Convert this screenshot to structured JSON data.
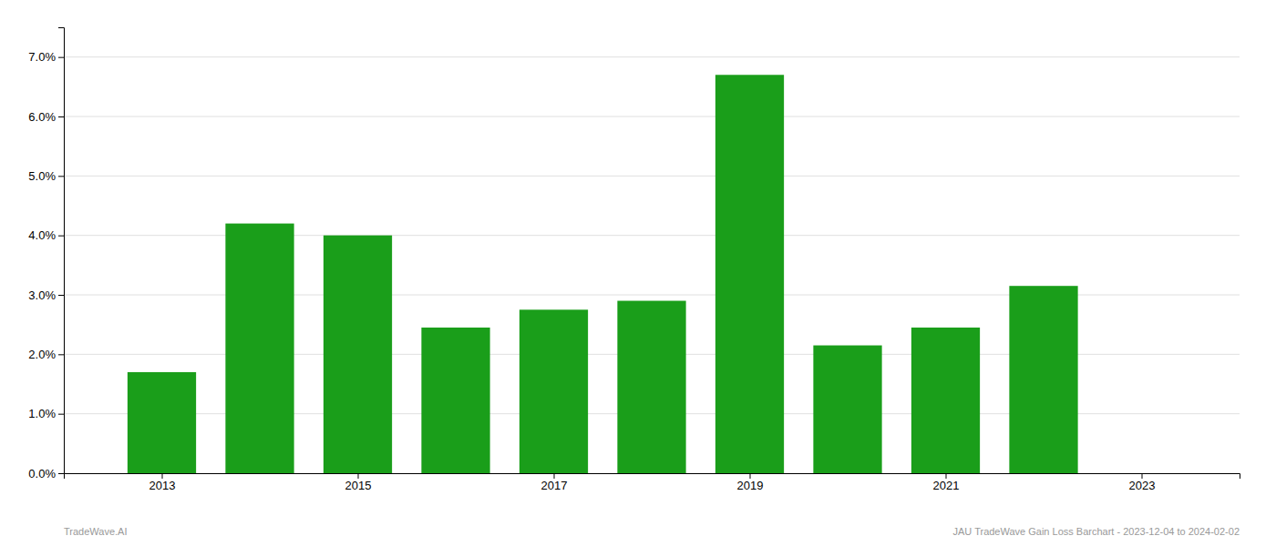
{
  "chart_data": {
    "type": "bar",
    "x": [
      2013,
      2014,
      2015,
      2016,
      2017,
      2018,
      2019,
      2020,
      2021,
      2022,
      2023
    ],
    "values": [
      0.017,
      0.042,
      0.04,
      0.0245,
      0.0275,
      0.029,
      0.067,
      0.0215,
      0.0245,
      0.0315,
      0.0
    ],
    "color": "#1a9e1a",
    "xlim": [
      2012.0,
      2024.0
    ],
    "xticks": [
      2013,
      2015,
      2017,
      2019,
      2021,
      2023
    ],
    "ylim": [
      0,
      0.075
    ],
    "yticks": [
      {
        "value": 0.0,
        "label": "0.0%"
      },
      {
        "value": 0.01,
        "label": "1.0%"
      },
      {
        "value": 0.02,
        "label": "2.0%"
      },
      {
        "value": 0.03,
        "label": "3.0%"
      },
      {
        "value": 0.04,
        "label": "4.0%"
      },
      {
        "value": 0.05,
        "label": "5.0%"
      },
      {
        "value": 0.06,
        "label": "6.0%"
      },
      {
        "value": 0.07,
        "label": "7.0%"
      }
    ],
    "grid": true,
    "annotations": [
      "TradeWave.AI",
      "JAU TradeWave Gain Loss Barchart - 2023-12-04 to 2024-02-02"
    ]
  }
}
